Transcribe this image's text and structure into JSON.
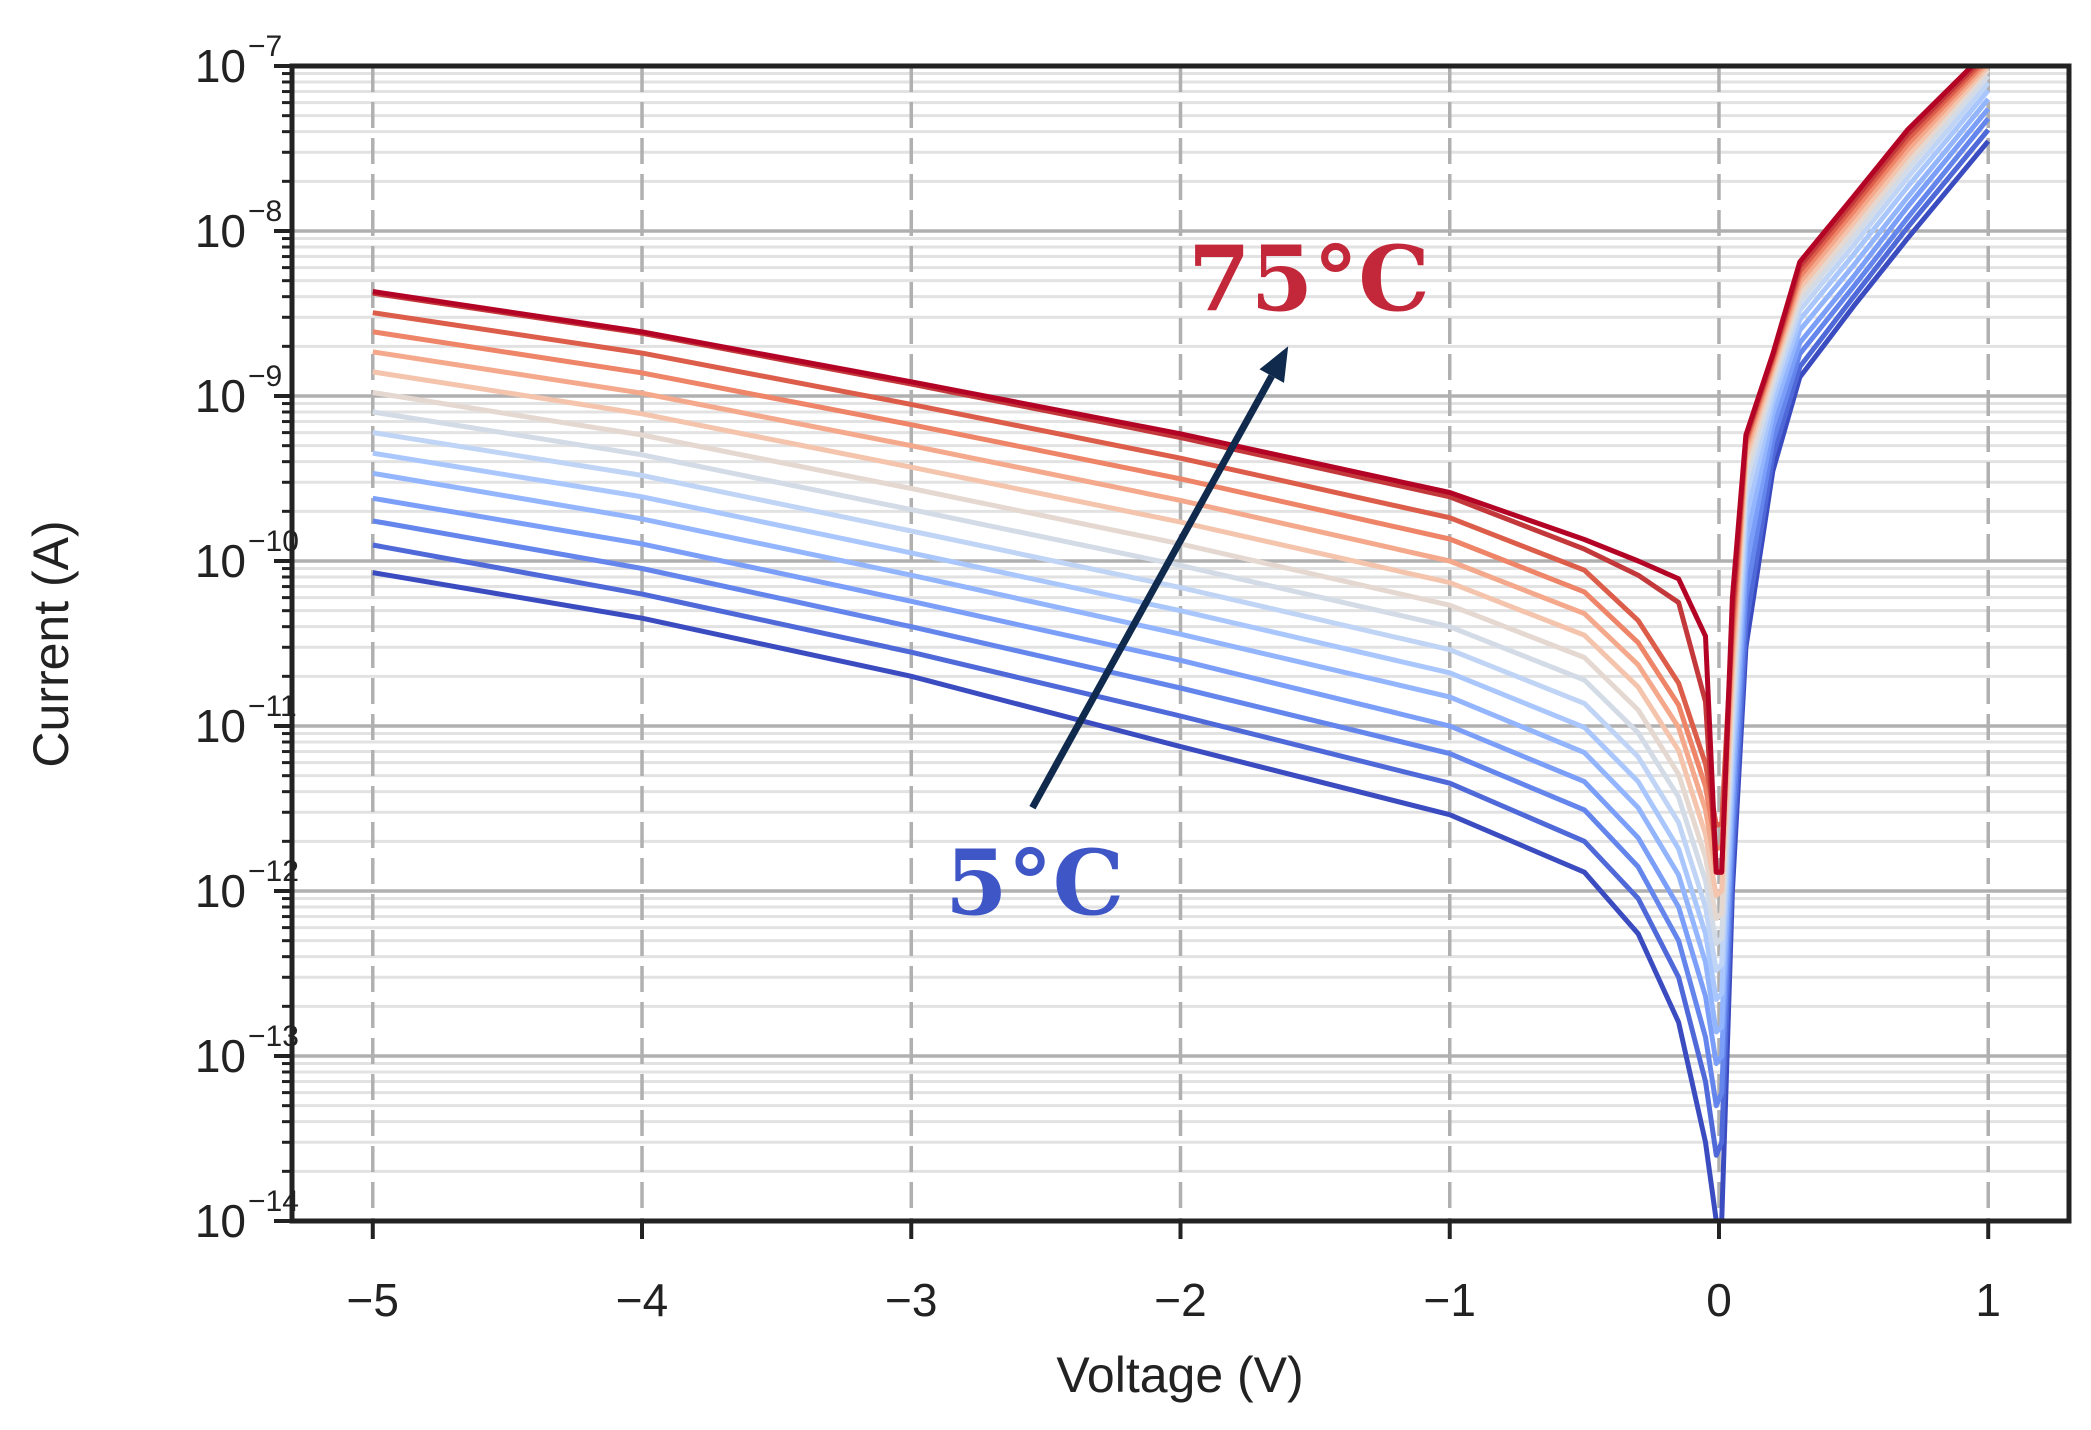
{
  "chart_data": {
    "type": "line",
    "xlabel": "Voltage (V)",
    "ylabel": "Current (A)",
    "xlim": [
      -5.3,
      1.3
    ],
    "ylim": [
      1e-14,
      1e-07
    ],
    "yscale": "log",
    "grid": true,
    "xticks": [
      -5,
      -4,
      -3,
      -2,
      -1,
      0,
      1
    ],
    "xtick_labels": [
      "−5",
      "−4",
      "−3",
      "−2",
      "−1",
      "0",
      "1"
    ],
    "yticks": [
      {
        "value": 1e-14,
        "base": "10",
        "exp": "−14"
      },
      {
        "value": 1e-13,
        "base": "10",
        "exp": "−13"
      },
      {
        "value": 1e-12,
        "base": "10",
        "exp": "−12"
      },
      {
        "value": 1e-11,
        "base": "10",
        "exp": "−11"
      },
      {
        "value": 1e-10,
        "base": "10",
        "exp": "−10"
      },
      {
        "value": 1e-09,
        "base": "10",
        "exp": "−9"
      },
      {
        "value": 1e-08,
        "base": "10",
        "exp": "−8"
      },
      {
        "value": 1e-07,
        "base": "10",
        "exp": "−7"
      }
    ],
    "series": [
      {
        "color": "#3b4cc0",
        "points": [
          [
            -5,
            8.5e-11
          ],
          [
            -4,
            4.5e-11
          ],
          [
            -3,
            2e-11
          ],
          [
            -2,
            7.5e-12
          ],
          [
            -1,
            2.9e-12
          ],
          [
            -0.5,
            1.3e-12
          ],
          [
            -0.3,
            5.5e-13
          ],
          [
            -0.15,
            1.6e-13
          ],
          [
            -0.05,
            3e-14
          ],
          [
            -0.01,
            1e-14
          ],
          [
            0.01,
            1e-14
          ],
          [
            0.05,
            1e-12
          ],
          [
            0.1,
            3e-11
          ],
          [
            0.2,
            3.5e-10
          ],
          [
            0.3,
            1.3e-09
          ],
          [
            0.5,
            3.5e-09
          ],
          [
            0.7,
            9e-09
          ],
          [
            1.0,
            3.5e-08
          ]
        ]
      },
      {
        "color": "#4f69d9",
        "points": [
          [
            -5,
            1.25e-10
          ],
          [
            -4,
            6.3e-11
          ],
          [
            -3,
            2.8e-11
          ],
          [
            -2,
            1.15e-11
          ],
          [
            -1,
            4.5e-12
          ],
          [
            -0.5,
            2e-12
          ],
          [
            -0.3,
            9e-13
          ],
          [
            -0.15,
            3e-13
          ],
          [
            -0.05,
            7e-14
          ],
          [
            -0.01,
            2.5e-14
          ],
          [
            0.01,
            3e-14
          ],
          [
            0.05,
            1.5e-12
          ],
          [
            0.1,
            4e-11
          ],
          [
            0.2,
            4.3e-10
          ],
          [
            0.3,
            1.5e-09
          ],
          [
            0.5,
            4e-09
          ],
          [
            0.7,
            1.05e-08
          ],
          [
            1.0,
            4.1e-08
          ]
        ]
      },
      {
        "color": "#6485ec",
        "points": [
          [
            -5,
            1.75e-10
          ],
          [
            -4,
            9e-11
          ],
          [
            -3,
            4e-11
          ],
          [
            -2,
            1.7e-11
          ],
          [
            -1,
            6.8e-12
          ],
          [
            -0.5,
            3.1e-12
          ],
          [
            -0.3,
            1.4e-12
          ],
          [
            -0.15,
            5e-13
          ],
          [
            -0.05,
            1.3e-13
          ],
          [
            -0.01,
            5e-14
          ],
          [
            0.01,
            6e-14
          ],
          [
            0.05,
            2.2e-12
          ],
          [
            0.1,
            6e-11
          ],
          [
            0.2,
            5.3e-10
          ],
          [
            0.3,
            1.8e-09
          ],
          [
            0.5,
            4.6e-09
          ],
          [
            0.7,
            1.2e-08
          ],
          [
            1.0,
            4.8e-08
          ]
        ]
      },
      {
        "color": "#7b9ff9",
        "points": [
          [
            -5,
            2.4e-10
          ],
          [
            -4,
            1.27e-10
          ],
          [
            -3,
            5.7e-11
          ],
          [
            -2,
            2.5e-11
          ],
          [
            -1,
            1e-11
          ],
          [
            -0.5,
            4.6e-12
          ],
          [
            -0.3,
            2.1e-12
          ],
          [
            -0.15,
            8e-13
          ],
          [
            -0.05,
            2.3e-13
          ],
          [
            -0.01,
            9e-14
          ],
          [
            0.01,
            1e-13
          ],
          [
            0.05,
            3.2e-12
          ],
          [
            0.1,
            9e-11
          ],
          [
            0.2,
            6.5e-10
          ],
          [
            0.3,
            2.1e-09
          ],
          [
            0.5,
            5.3e-09
          ],
          [
            0.7,
            1.4e-08
          ],
          [
            1.0,
            5.5e-08
          ]
        ]
      },
      {
        "color": "#93b5fe",
        "points": [
          [
            -5,
            3.4e-10
          ],
          [
            -4,
            1.8e-10
          ],
          [
            -3,
            8.2e-11
          ],
          [
            -2,
            3.6e-11
          ],
          [
            -1,
            1.5e-11
          ],
          [
            -0.5,
            6.9e-12
          ],
          [
            -0.3,
            3.2e-12
          ],
          [
            -0.15,
            1.25e-12
          ],
          [
            -0.05,
            3.7e-13
          ],
          [
            -0.01,
            1.4e-13
          ],
          [
            0.01,
            1.5e-13
          ],
          [
            0.05,
            4.5e-12
          ],
          [
            0.1,
            1.3e-10
          ],
          [
            0.2,
            7.8e-10
          ],
          [
            0.3,
            2.5e-09
          ],
          [
            0.5,
            6.2e-09
          ],
          [
            0.7,
            1.6e-08
          ],
          [
            1.0,
            6.3e-08
          ]
        ]
      },
      {
        "color": "#aac7fd",
        "points": [
          [
            -5,
            4.5e-10
          ],
          [
            -4,
            2.45e-10
          ],
          [
            -3,
            1.12e-10
          ],
          [
            -2,
            5e-11
          ],
          [
            -1,
            2.1e-11
          ],
          [
            -0.5,
            9.8e-12
          ],
          [
            -0.3,
            4.6e-12
          ],
          [
            -0.15,
            1.8e-12
          ],
          [
            -0.05,
            5.5e-13
          ],
          [
            -0.01,
            2.2e-13
          ],
          [
            0.01,
            2.4e-13
          ],
          [
            0.05,
            6.5e-12
          ],
          [
            0.1,
            1.8e-10
          ],
          [
            0.2,
            9.2e-10
          ],
          [
            0.3,
            2.9e-09
          ],
          [
            0.5,
            7.2e-09
          ],
          [
            0.7,
            1.85e-08
          ],
          [
            1.0,
            7.1e-08
          ]
        ]
      },
      {
        "color": "#c0d4f5",
        "points": [
          [
            -5,
            6e-10
          ],
          [
            -4,
            3.3e-10
          ],
          [
            -3,
            1.52e-10
          ],
          [
            -2,
            6.9e-11
          ],
          [
            -1,
            2.9e-11
          ],
          [
            -0.5,
            1.37e-11
          ],
          [
            -0.3,
            6.5e-12
          ],
          [
            -0.15,
            2.6e-12
          ],
          [
            -0.05,
            8e-13
          ],
          [
            -0.01,
            3.3e-13
          ],
          [
            0.01,
            3.6e-13
          ],
          [
            0.05,
            9e-12
          ],
          [
            0.1,
            2.4e-10
          ],
          [
            0.2,
            1.05e-09
          ],
          [
            0.3,
            3.3e-09
          ],
          [
            0.5,
            8.2e-09
          ],
          [
            0.7,
            2.1e-08
          ],
          [
            1.0,
            7.9e-08
          ]
        ]
      },
      {
        "color": "#d3dbe7",
        "points": [
          [
            -5,
            8e-10
          ],
          [
            -4,
            4.4e-10
          ],
          [
            -3,
            2.05e-10
          ],
          [
            -2,
            9.4e-11
          ],
          [
            -1,
            4e-11
          ],
          [
            -0.5,
            1.9e-11
          ],
          [
            -0.3,
            9.1e-12
          ],
          [
            -0.15,
            3.7e-12
          ],
          [
            -0.05,
            1.15e-12
          ],
          [
            -0.01,
            4.8e-13
          ],
          [
            0.01,
            5.2e-13
          ],
          [
            0.05,
            1.2e-11
          ],
          [
            0.1,
            3e-10
          ],
          [
            0.2,
            1.18e-09
          ],
          [
            0.3,
            3.7e-09
          ],
          [
            0.5,
            9.2e-09
          ],
          [
            0.7,
            2.35e-08
          ],
          [
            1.0,
            8.7e-08
          ]
        ]
      },
      {
        "color": "#e5d8d1",
        "points": [
          [
            -5,
            1.05e-09
          ],
          [
            -4,
            5.8e-10
          ],
          [
            -3,
            2.75e-10
          ],
          [
            -2,
            1.27e-10
          ],
          [
            -1,
            5.4e-11
          ],
          [
            -0.5,
            2.6e-11
          ],
          [
            -0.3,
            1.25e-11
          ],
          [
            -0.15,
            5.1e-12
          ],
          [
            -0.05,
            1.6e-12
          ],
          [
            -0.01,
            6.8e-13
          ],
          [
            0.01,
            7.3e-13
          ],
          [
            0.05,
            1.6e-11
          ],
          [
            0.1,
            3.6e-10
          ],
          [
            0.2,
            1.3e-09
          ],
          [
            0.3,
            4.1e-09
          ],
          [
            0.5,
            1.02e-08
          ],
          [
            0.7,
            2.6e-08
          ],
          [
            1.0,
            9.5e-08
          ]
        ]
      },
      {
        "color": "#f4c4ad",
        "points": [
          [
            -5,
            1.4e-09
          ],
          [
            -4,
            7.8e-10
          ],
          [
            -3,
            3.7e-10
          ],
          [
            -2,
            1.72e-10
          ],
          [
            -1,
            7.4e-11
          ],
          [
            -0.5,
            3.55e-11
          ],
          [
            -0.3,
            1.72e-11
          ],
          [
            -0.15,
            7.1e-12
          ],
          [
            -0.05,
            2.2e-12
          ],
          [
            -0.01,
            9.4e-13
          ],
          [
            0.01,
            1e-12
          ],
          [
            0.05,
            2.1e-11
          ],
          [
            0.1,
            4.2e-10
          ],
          [
            0.2,
            1.42e-09
          ],
          [
            0.3,
            4.5e-09
          ],
          [
            0.5,
            1.12e-08
          ],
          [
            0.7,
            2.85e-08
          ],
          [
            1.0,
            1e-07
          ]
        ]
      },
      {
        "color": "#f5a98c",
        "points": [
          [
            -5,
            1.85e-09
          ],
          [
            -4,
            1.04e-09
          ],
          [
            -3,
            5e-10
          ],
          [
            -2,
            2.33e-10
          ],
          [
            -1,
            1e-10
          ],
          [
            -0.5,
            4.8e-11
          ],
          [
            -0.3,
            2.35e-11
          ],
          [
            -0.15,
            9.8e-12
          ],
          [
            -0.05,
            3.1e-12
          ],
          [
            -0.01,
            1.3e-12
          ],
          [
            0.01,
            1.35e-12
          ],
          [
            0.05,
            2.7e-11
          ],
          [
            0.1,
            4.7e-10
          ],
          [
            0.2,
            1.52e-09
          ],
          [
            0.3,
            4.9e-09
          ],
          [
            0.5,
            1.22e-08
          ],
          [
            0.7,
            3.1e-08
          ],
          [
            1.0,
            1.05e-07
          ]
        ]
      },
      {
        "color": "#ee8468",
        "points": [
          [
            -5,
            2.45e-09
          ],
          [
            -4,
            1.38e-09
          ],
          [
            -3,
            6.7e-10
          ],
          [
            -2,
            3.15e-10
          ],
          [
            -1,
            1.36e-10
          ],
          [
            -0.5,
            6.5e-11
          ],
          [
            -0.3,
            3.2e-11
          ],
          [
            -0.15,
            1.34e-11
          ],
          [
            -0.05,
            4.3e-12
          ],
          [
            -0.01,
            1.8e-12
          ],
          [
            0.01,
            1.85e-12
          ],
          [
            0.05,
            3.4e-11
          ],
          [
            0.1,
            5.1e-10
          ],
          [
            0.2,
            1.6e-09
          ],
          [
            0.3,
            5.3e-09
          ],
          [
            0.5,
            1.32e-08
          ],
          [
            0.7,
            3.35e-08
          ],
          [
            1.0,
            1.1e-07
          ]
        ]
      },
      {
        "color": "#dc5d4a",
        "points": [
          [
            -5,
            3.2e-09
          ],
          [
            -4,
            1.82e-09
          ],
          [
            -3,
            8.9e-10
          ],
          [
            -2,
            4.2e-10
          ],
          [
            -1,
            1.83e-10
          ],
          [
            -0.5,
            8.8e-11
          ],
          [
            -0.3,
            4.35e-11
          ],
          [
            -0.15,
            1.82e-11
          ],
          [
            -0.05,
            5.9e-12
          ],
          [
            -0.01,
            2.5e-12
          ],
          [
            0.01,
            2.55e-12
          ],
          [
            0.05,
            4.2e-11
          ],
          [
            0.1,
            5.4e-10
          ],
          [
            0.2,
            1.68e-09
          ],
          [
            0.3,
            5.7e-09
          ],
          [
            0.5,
            1.42e-08
          ],
          [
            0.7,
            3.6e-08
          ],
          [
            1.0,
            1.15e-07
          ]
        ]
      },
      {
        "color": "#c3383a",
        "points": [
          [
            -5,
            4.2e-09
          ],
          [
            -4,
            2.4e-09
          ],
          [
            -3,
            1.18e-09
          ],
          [
            -2,
            5.6e-10
          ],
          [
            -1,
            2.45e-10
          ],
          [
            -0.5,
            1.18e-10
          ],
          [
            -0.3,
            8.2e-11
          ],
          [
            -0.15,
            5.6e-11
          ],
          [
            -0.05,
            1.4e-11
          ],
          [
            -0.01,
            1.3e-12
          ],
          [
            0.01,
            1.3e-12
          ],
          [
            0.05,
            5e-11
          ],
          [
            0.1,
            5.6e-10
          ],
          [
            0.2,
            1.75e-09
          ],
          [
            0.3,
            6.1e-09
          ],
          [
            0.5,
            1.52e-08
          ],
          [
            0.7,
            3.85e-08
          ],
          [
            1.0,
            1.2e-07
          ]
        ]
      },
      {
        "color": "#b40426",
        "points": [
          [
            -5,
            4.3e-09
          ],
          [
            -4,
            2.45e-09
          ],
          [
            -3,
            1.22e-09
          ],
          [
            -2,
            5.9e-10
          ],
          [
            -1,
            2.6e-10
          ],
          [
            -0.5,
            1.35e-10
          ],
          [
            -0.3,
            1e-10
          ],
          [
            -0.15,
            7.8e-11
          ],
          [
            -0.05,
            3.5e-11
          ],
          [
            -0.01,
            1.3e-12
          ],
          [
            0.01,
            1.3e-12
          ],
          [
            0.05,
            6e-11
          ],
          [
            0.1,
            5.8e-10
          ],
          [
            0.2,
            1.8e-09
          ],
          [
            0.3,
            6.5e-09
          ],
          [
            0.5,
            1.62e-08
          ],
          [
            0.7,
            4.1e-08
          ],
          [
            1.0,
            1.25e-07
          ]
        ]
      }
    ],
    "annotations": [
      {
        "text": "75°C",
        "color": "#c22839"
      },
      {
        "text": "5°C",
        "color": "#3f56c6"
      }
    ],
    "arrow": {
      "color": "#0f2a4d",
      "from": [
        -2.55,
        3.2e-12
      ],
      "to": [
        -1.6,
        2e-09
      ]
    }
  }
}
